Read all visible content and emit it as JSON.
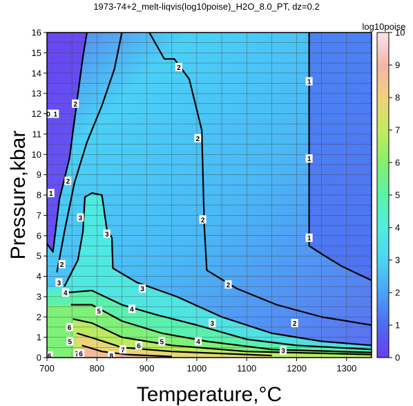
{
  "chart_data": {
    "type": "heatmap",
    "title": "1973-74+2_melt-liqvis(log10poise)_H2O_8.0_PT, dz=0.2",
    "xlabel": "Temperature,°C",
    "ylabel": "Pressure,kbar",
    "xlim": [
      700,
      1350
    ],
    "ylim": [
      0,
      16
    ],
    "x_ticks": [
      "700",
      "800",
      "900",
      "1000",
      "1100",
      "1200",
      "1300"
    ],
    "y_ticks": [
      "0",
      "1",
      "2",
      "3",
      "4",
      "5",
      "6",
      "7",
      "8",
      "9",
      "10",
      "11",
      "12",
      "13",
      "14",
      "15",
      "16"
    ],
    "grid": true,
    "colorbar": {
      "label": "log10poise",
      "range": [
        0,
        10
      ],
      "ticks": [
        "0",
        "1",
        "2",
        "3",
        "4",
        "5",
        "6",
        "7",
        "8",
        "9",
        "10"
      ],
      "colors": [
        "#6a3cf0",
        "#4d6cf2",
        "#4aa2f6",
        "#4cd4f4",
        "#50eede",
        "#5cf2a6",
        "#86f06e",
        "#c4ea5e",
        "#f0d27a",
        "#f5b6a6",
        "#fde2ee"
      ]
    },
    "contours": [
      {
        "level": 1,
        "label": "1",
        "points": [
          [
            700,
            5.6
          ],
          [
            712,
            5.2
          ],
          [
            725,
            7.8
          ],
          [
            745,
            9.8
          ],
          [
            760,
            12.6
          ],
          [
            772,
            14.8
          ],
          [
            780,
            16
          ]
        ]
      },
      {
        "level": 1,
        "label": "1",
        "points": [
          [
            1225,
            16
          ],
          [
            1225,
            5.5
          ],
          [
            1250,
            5.1
          ],
          [
            1290,
            4.5
          ],
          [
            1350,
            3.8
          ]
        ]
      },
      {
        "level": 2,
        "label": "2",
        "points": [
          [
            720,
            4.2
          ],
          [
            735,
            6.2
          ],
          [
            755,
            8.6
          ],
          [
            780,
            10.6
          ],
          [
            810,
            12.4
          ],
          [
            835,
            14.2
          ],
          [
            850,
            16
          ]
        ]
      },
      {
        "level": 2,
        "label": "2",
        "points": [
          [
            905,
            16
          ],
          [
            935,
            14.7
          ],
          [
            955,
            14.7
          ],
          [
            985,
            13.7
          ],
          [
            1010,
            11.2
          ],
          [
            1015,
            6.5
          ],
          [
            1020,
            4.3
          ],
          [
            1080,
            3.4
          ],
          [
            1160,
            2.6
          ],
          [
            1250,
            2.0
          ],
          [
            1350,
            1.6
          ]
        ]
      },
      {
        "level": 3,
        "label": "3",
        "points": [
          [
            735,
            3.5
          ],
          [
            762,
            4.8
          ],
          [
            772,
            6.2
          ],
          [
            776,
            7.9
          ],
          [
            790,
            8.1
          ],
          [
            810,
            8.0
          ],
          [
            820,
            6.3
          ],
          [
            830,
            5.9
          ],
          [
            832,
            4.4
          ],
          [
            880,
            3.7
          ],
          [
            960,
            3.0
          ],
          [
            1050,
            2.0
          ],
          [
            1150,
            1.2
          ],
          [
            1250,
            0.8
          ],
          [
            1350,
            0.6
          ]
        ]
      },
      {
        "level": 4,
        "label": "4",
        "points": [
          [
            740,
            3.2
          ],
          [
            790,
            3.3
          ],
          [
            850,
            2.6
          ],
          [
            920,
            2.1
          ],
          [
            1000,
            1.6
          ],
          [
            1100,
            0.9
          ],
          [
            1200,
            0.6
          ],
          [
            1350,
            0.4
          ]
        ]
      },
      {
        "level": 5,
        "label": "5",
        "points": [
          [
            748,
            2.6
          ],
          [
            790,
            2.6
          ],
          [
            850,
            1.8
          ],
          [
            930,
            1.2
          ],
          [
            1020,
            0.8
          ],
          [
            1150,
            0.4
          ],
          [
            1350,
            0.25
          ]
        ]
      },
      {
        "level": 6,
        "label": "6",
        "points": [
          [
            752,
            1.9
          ],
          [
            790,
            1.7
          ],
          [
            850,
            1.0
          ],
          [
            950,
            0.6
          ],
          [
            1100,
            0.3
          ],
          [
            1350,
            0.15
          ]
        ]
      },
      {
        "level": 7,
        "label": "7",
        "points": [
          [
            760,
            1.2
          ],
          [
            800,
            0.9
          ],
          [
            850,
            0.5
          ],
          [
            950,
            0.3
          ],
          [
            1150,
            0.1
          ]
        ]
      },
      {
        "level": 8,
        "label": "8",
        "points": [
          [
            770,
            0.6
          ],
          [
            810,
            0.3
          ],
          [
            860,
            0.15
          ],
          [
            950,
            0.05
          ]
        ]
      }
    ],
    "contour_labels": [
      {
        "text": "0",
        "x": 703,
        "y": 12.0
      },
      {
        "text": "1",
        "x": 717,
        "y": 12.0
      },
      {
        "text": "1",
        "x": 708,
        "y": 8.1
      },
      {
        "text": "2",
        "x": 757,
        "y": 12.5
      },
      {
        "text": "2",
        "x": 742,
        "y": 8.7
      },
      {
        "text": "3",
        "x": 767,
        "y": 6.9
      },
      {
        "text": "3",
        "x": 820,
        "y": 6.1
      },
      {
        "text": "2",
        "x": 964,
        "y": 14.3
      },
      {
        "text": "2",
        "x": 1002,
        "y": 10.8
      },
      {
        "text": "2",
        "x": 1012,
        "y": 6.8
      },
      {
        "text": "1",
        "x": 1225,
        "y": 13.6
      },
      {
        "text": "1",
        "x": 1225,
        "y": 9.8
      },
      {
        "text": "1",
        "x": 1225,
        "y": 5.9
      },
      {
        "text": "2",
        "x": 1063,
        "y": 3.6
      },
      {
        "text": "2",
        "x": 1196,
        "y": 1.7
      },
      {
        "text": "3",
        "x": 891,
        "y": 3.4
      },
      {
        "text": "3",
        "x": 1031,
        "y": 1.7
      },
      {
        "text": "3",
        "x": 1173,
        "y": 0.35
      },
      {
        "text": "4",
        "x": 870,
        "y": 2.4
      },
      {
        "text": "4",
        "x": 1003,
        "y": 0.8
      },
      {
        "text": "5",
        "x": 804,
        "y": 2.3
      },
      {
        "text": "5",
        "x": 930,
        "y": 0.8
      },
      {
        "text": "6",
        "x": 745,
        "y": 1.5
      },
      {
        "text": "6",
        "x": 884,
        "y": 0.6
      },
      {
        "text": "7",
        "x": 852,
        "y": 0.4
      },
      {
        "text": "7",
        "x": 760,
        "y": 0.2
      },
      {
        "text": "6",
        "x": 768,
        "y": 0.2
      },
      {
        "text": "8",
        "x": 829,
        "y": 0.1
      },
      {
        "text": "6",
        "x": 705,
        "y": 0.1
      },
      {
        "text": "5",
        "x": 746,
        "y": 0.8
      },
      {
        "text": "4",
        "x": 737,
        "y": 3.2
      },
      {
        "text": "3",
        "x": 724,
        "y": 3.7
      },
      {
        "text": "2",
        "x": 730,
        "y": 4.6
      }
    ]
  }
}
